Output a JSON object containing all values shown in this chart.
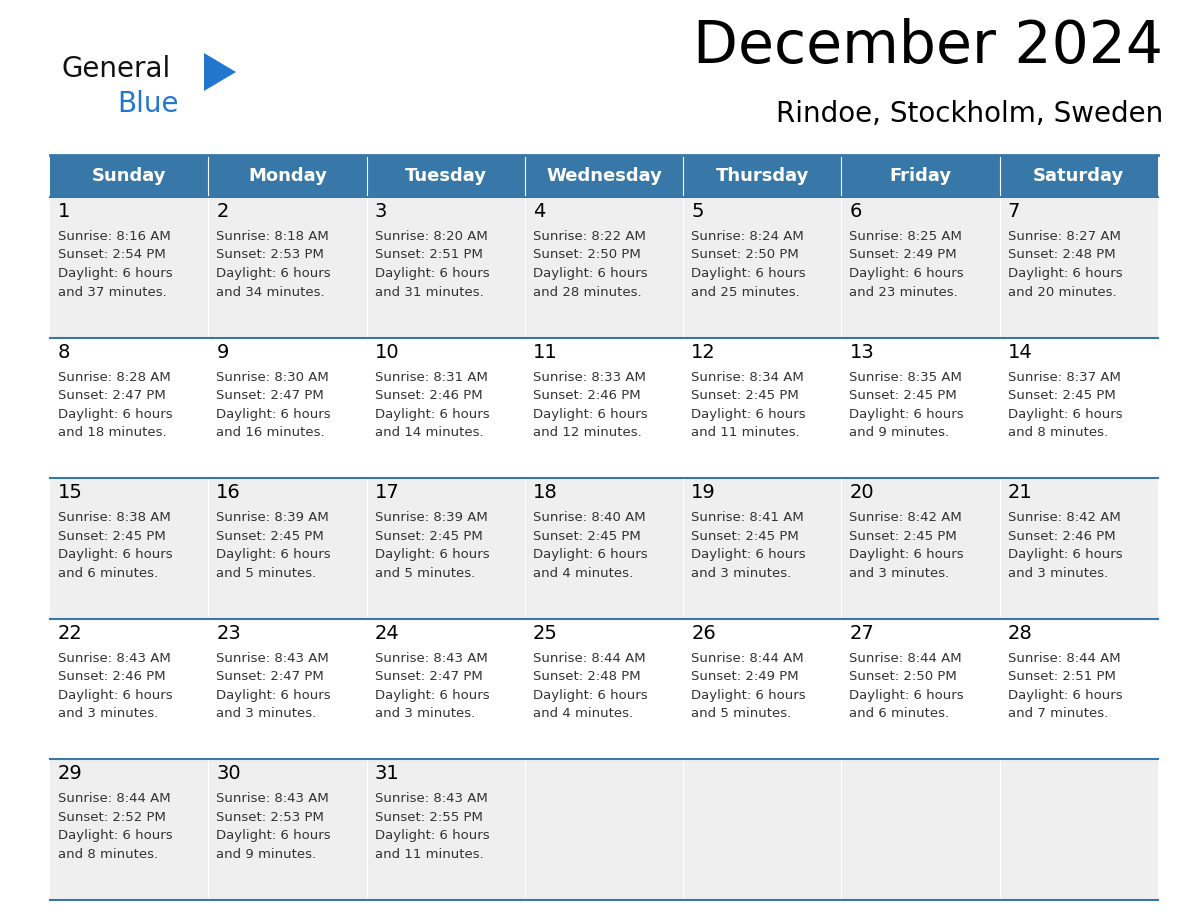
{
  "title": "December 2024",
  "subtitle": "Rindoe, Stockholm, Sweden",
  "header_color": "#3878a8",
  "header_text_color": "#ffffff",
  "cell_bg_odd": "#efefef",
  "cell_bg_even": "#ffffff",
  "border_color": "#3878a8",
  "text_color": "#333333",
  "day_headers": [
    "Sunday",
    "Monday",
    "Tuesday",
    "Wednesday",
    "Thursday",
    "Friday",
    "Saturday"
  ],
  "calendar_data": [
    [
      {
        "day": 1,
        "sunrise": "8:16 AM",
        "sunset": "2:54 PM",
        "daylight_suffix": "37 minutes."
      },
      {
        "day": 2,
        "sunrise": "8:18 AM",
        "sunset": "2:53 PM",
        "daylight_suffix": "34 minutes."
      },
      {
        "day": 3,
        "sunrise": "8:20 AM",
        "sunset": "2:51 PM",
        "daylight_suffix": "31 minutes."
      },
      {
        "day": 4,
        "sunrise": "8:22 AM",
        "sunset": "2:50 PM",
        "daylight_suffix": "28 minutes."
      },
      {
        "day": 5,
        "sunrise": "8:24 AM",
        "sunset": "2:50 PM",
        "daylight_suffix": "25 minutes."
      },
      {
        "day": 6,
        "sunrise": "8:25 AM",
        "sunset": "2:49 PM",
        "daylight_suffix": "23 minutes."
      },
      {
        "day": 7,
        "sunrise": "8:27 AM",
        "sunset": "2:48 PM",
        "daylight_suffix": "20 minutes."
      }
    ],
    [
      {
        "day": 8,
        "sunrise": "8:28 AM",
        "sunset": "2:47 PM",
        "daylight_suffix": "18 minutes."
      },
      {
        "day": 9,
        "sunrise": "8:30 AM",
        "sunset": "2:47 PM",
        "daylight_suffix": "16 minutes."
      },
      {
        "day": 10,
        "sunrise": "8:31 AM",
        "sunset": "2:46 PM",
        "daylight_suffix": "14 minutes."
      },
      {
        "day": 11,
        "sunrise": "8:33 AM",
        "sunset": "2:46 PM",
        "daylight_suffix": "12 minutes."
      },
      {
        "day": 12,
        "sunrise": "8:34 AM",
        "sunset": "2:45 PM",
        "daylight_suffix": "11 minutes."
      },
      {
        "day": 13,
        "sunrise": "8:35 AM",
        "sunset": "2:45 PM",
        "daylight_suffix": "9 minutes."
      },
      {
        "day": 14,
        "sunrise": "8:37 AM",
        "sunset": "2:45 PM",
        "daylight_suffix": "8 minutes."
      }
    ],
    [
      {
        "day": 15,
        "sunrise": "8:38 AM",
        "sunset": "2:45 PM",
        "daylight_suffix": "6 minutes."
      },
      {
        "day": 16,
        "sunrise": "8:39 AM",
        "sunset": "2:45 PM",
        "daylight_suffix": "5 minutes."
      },
      {
        "day": 17,
        "sunrise": "8:39 AM",
        "sunset": "2:45 PM",
        "daylight_suffix": "5 minutes."
      },
      {
        "day": 18,
        "sunrise": "8:40 AM",
        "sunset": "2:45 PM",
        "daylight_suffix": "4 minutes."
      },
      {
        "day": 19,
        "sunrise": "8:41 AM",
        "sunset": "2:45 PM",
        "daylight_suffix": "3 minutes."
      },
      {
        "day": 20,
        "sunrise": "8:42 AM",
        "sunset": "2:45 PM",
        "daylight_suffix": "3 minutes."
      },
      {
        "day": 21,
        "sunrise": "8:42 AM",
        "sunset": "2:46 PM",
        "daylight_suffix": "3 minutes."
      }
    ],
    [
      {
        "day": 22,
        "sunrise": "8:43 AM",
        "sunset": "2:46 PM",
        "daylight_suffix": "3 minutes."
      },
      {
        "day": 23,
        "sunrise": "8:43 AM",
        "sunset": "2:47 PM",
        "daylight_suffix": "3 minutes."
      },
      {
        "day": 24,
        "sunrise": "8:43 AM",
        "sunset": "2:47 PM",
        "daylight_suffix": "3 minutes."
      },
      {
        "day": 25,
        "sunrise": "8:44 AM",
        "sunset": "2:48 PM",
        "daylight_suffix": "4 minutes."
      },
      {
        "day": 26,
        "sunrise": "8:44 AM",
        "sunset": "2:49 PM",
        "daylight_suffix": "5 minutes."
      },
      {
        "day": 27,
        "sunrise": "8:44 AM",
        "sunset": "2:50 PM",
        "daylight_suffix": "6 minutes."
      },
      {
        "day": 28,
        "sunrise": "8:44 AM",
        "sunset": "2:51 PM",
        "daylight_suffix": "7 minutes."
      }
    ],
    [
      {
        "day": 29,
        "sunrise": "8:44 AM",
        "sunset": "2:52 PM",
        "daylight_suffix": "8 minutes."
      },
      {
        "day": 30,
        "sunrise": "8:43 AM",
        "sunset": "2:53 PM",
        "daylight_suffix": "9 minutes."
      },
      {
        "day": 31,
        "sunrise": "8:43 AM",
        "sunset": "2:55 PM",
        "daylight_suffix": "11 minutes."
      },
      null,
      null,
      null,
      null
    ]
  ],
  "logo_general_color": "#111111",
  "logo_blue_color": "#2277cc",
  "logo_triangle_color": "#2277cc",
  "figsize": [
    11.88,
    9.18
  ],
  "dpi": 100
}
